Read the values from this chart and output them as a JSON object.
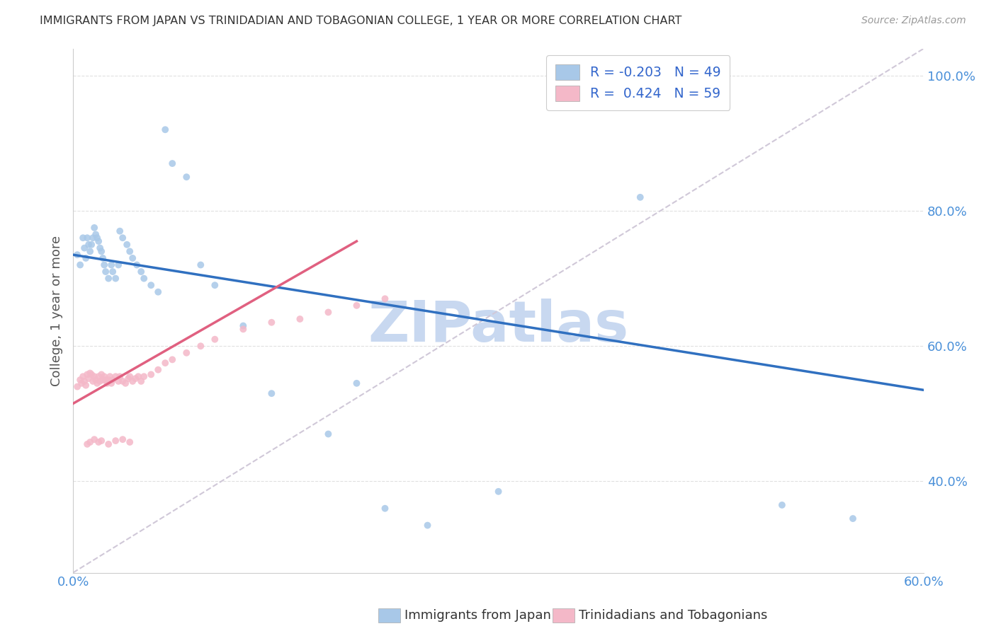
{
  "title": "IMMIGRANTS FROM JAPAN VS TRINIDADIAN AND TOBAGONIAN COLLEGE, 1 YEAR OR MORE CORRELATION CHART",
  "source": "Source: ZipAtlas.com",
  "ylabel": "College, 1 year or more",
  "xmin": 0.0,
  "xmax": 0.6,
  "ymin": 0.265,
  "ymax": 1.04,
  "yticks": [
    0.4,
    0.6,
    0.8,
    1.0
  ],
  "ytick_labels": [
    "40.0%",
    "60.0%",
    "80.0%",
    "100.0%"
  ],
  "xticks": [
    0.0,
    0.1,
    0.2,
    0.3,
    0.4,
    0.5,
    0.6
  ],
  "xtick_labels": [
    "0.0%",
    "",
    "",
    "",
    "",
    "",
    "60.0%"
  ],
  "color_blue": "#a8c8e8",
  "color_pink": "#f4b8c8",
  "color_line_blue": "#3070c0",
  "color_line_pink": "#e06080",
  "color_diag": "#d0c8d8",
  "color_axis_labels": "#4a90d9",
  "watermark_text": "ZIPatlas",
  "watermark_color": "#c8d8f0",
  "legend_label1": "R = -0.203   N = 49",
  "legend_label2": "R =  0.424   N = 59",
  "bottom_legend1": "Immigrants from Japan",
  "bottom_legend2": "Trinidadians and Tobagonians",
  "japan_x": [
    0.003,
    0.005,
    0.007,
    0.008,
    0.009,
    0.01,
    0.011,
    0.012,
    0.013,
    0.014,
    0.015,
    0.016,
    0.017,
    0.018,
    0.019,
    0.02,
    0.021,
    0.022,
    0.023,
    0.025,
    0.027,
    0.028,
    0.03,
    0.032,
    0.033,
    0.035,
    0.038,
    0.04,
    0.042,
    0.045,
    0.048,
    0.05,
    0.055,
    0.06,
    0.065,
    0.07,
    0.08,
    0.09,
    0.1,
    0.12,
    0.14,
    0.18,
    0.2,
    0.22,
    0.25,
    0.3,
    0.4,
    0.5,
    0.55
  ],
  "japan_y": [
    0.735,
    0.72,
    0.76,
    0.745,
    0.73,
    0.76,
    0.75,
    0.74,
    0.75,
    0.76,
    0.775,
    0.765,
    0.76,
    0.755,
    0.745,
    0.74,
    0.73,
    0.72,
    0.71,
    0.7,
    0.72,
    0.71,
    0.7,
    0.72,
    0.77,
    0.76,
    0.75,
    0.74,
    0.73,
    0.72,
    0.71,
    0.7,
    0.69,
    0.68,
    0.92,
    0.87,
    0.85,
    0.72,
    0.69,
    0.63,
    0.53,
    0.47,
    0.545,
    0.36,
    0.335,
    0.385,
    0.82,
    0.365,
    0.345
  ],
  "trini_x": [
    0.003,
    0.005,
    0.006,
    0.007,
    0.008,
    0.009,
    0.01,
    0.011,
    0.012,
    0.013,
    0.014,
    0.015,
    0.016,
    0.017,
    0.018,
    0.019,
    0.02,
    0.021,
    0.022,
    0.023,
    0.024,
    0.025,
    0.026,
    0.027,
    0.028,
    0.03,
    0.032,
    0.033,
    0.035,
    0.037,
    0.039,
    0.04,
    0.042,
    0.044,
    0.046,
    0.048,
    0.05,
    0.055,
    0.06,
    0.065,
    0.07,
    0.08,
    0.09,
    0.1,
    0.12,
    0.14,
    0.16,
    0.18,
    0.2,
    0.22,
    0.01,
    0.012,
    0.015,
    0.018,
    0.02,
    0.025,
    0.03,
    0.035,
    0.04
  ],
  "trini_y": [
    0.54,
    0.55,
    0.545,
    0.555,
    0.548,
    0.542,
    0.558,
    0.552,
    0.56,
    0.558,
    0.548,
    0.555,
    0.55,
    0.545,
    0.555,
    0.548,
    0.558,
    0.55,
    0.555,
    0.55,
    0.545,
    0.55,
    0.555,
    0.545,
    0.55,
    0.555,
    0.548,
    0.555,
    0.548,
    0.545,
    0.552,
    0.555,
    0.548,
    0.552,
    0.555,
    0.548,
    0.555,
    0.558,
    0.565,
    0.575,
    0.58,
    0.59,
    0.6,
    0.61,
    0.625,
    0.635,
    0.64,
    0.65,
    0.66,
    0.67,
    0.455,
    0.458,
    0.462,
    0.458,
    0.46,
    0.455,
    0.46,
    0.462,
    0.458
  ],
  "blue_line_x": [
    0.0,
    0.6
  ],
  "blue_line_y": [
    0.735,
    0.535
  ],
  "pink_line_x": [
    0.0,
    0.2
  ],
  "pink_line_y": [
    0.515,
    0.755
  ],
  "diag_line_x": [
    0.0,
    0.6
  ],
  "diag_line_y": [
    0.265,
    1.04
  ]
}
